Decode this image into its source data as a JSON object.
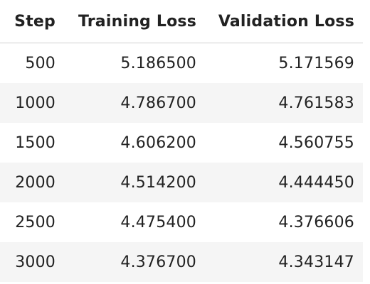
{
  "table": {
    "headers": [
      "Step",
      "Training Loss",
      "Validation Loss"
    ],
    "rows": [
      {
        "step": "500",
        "training_loss": "5.186500",
        "validation_loss": "5.171569"
      },
      {
        "step": "1000",
        "training_loss": "4.786700",
        "validation_loss": "4.761583"
      },
      {
        "step": "1500",
        "training_loss": "4.606200",
        "validation_loss": "4.560755"
      },
      {
        "step": "2000",
        "training_loss": "4.514200",
        "validation_loss": "4.444450"
      },
      {
        "step": "2500",
        "training_loss": "4.475400",
        "validation_loss": "4.376606"
      },
      {
        "step": "3000",
        "training_loss": "4.376700",
        "validation_loss": "4.343147"
      }
    ]
  }
}
